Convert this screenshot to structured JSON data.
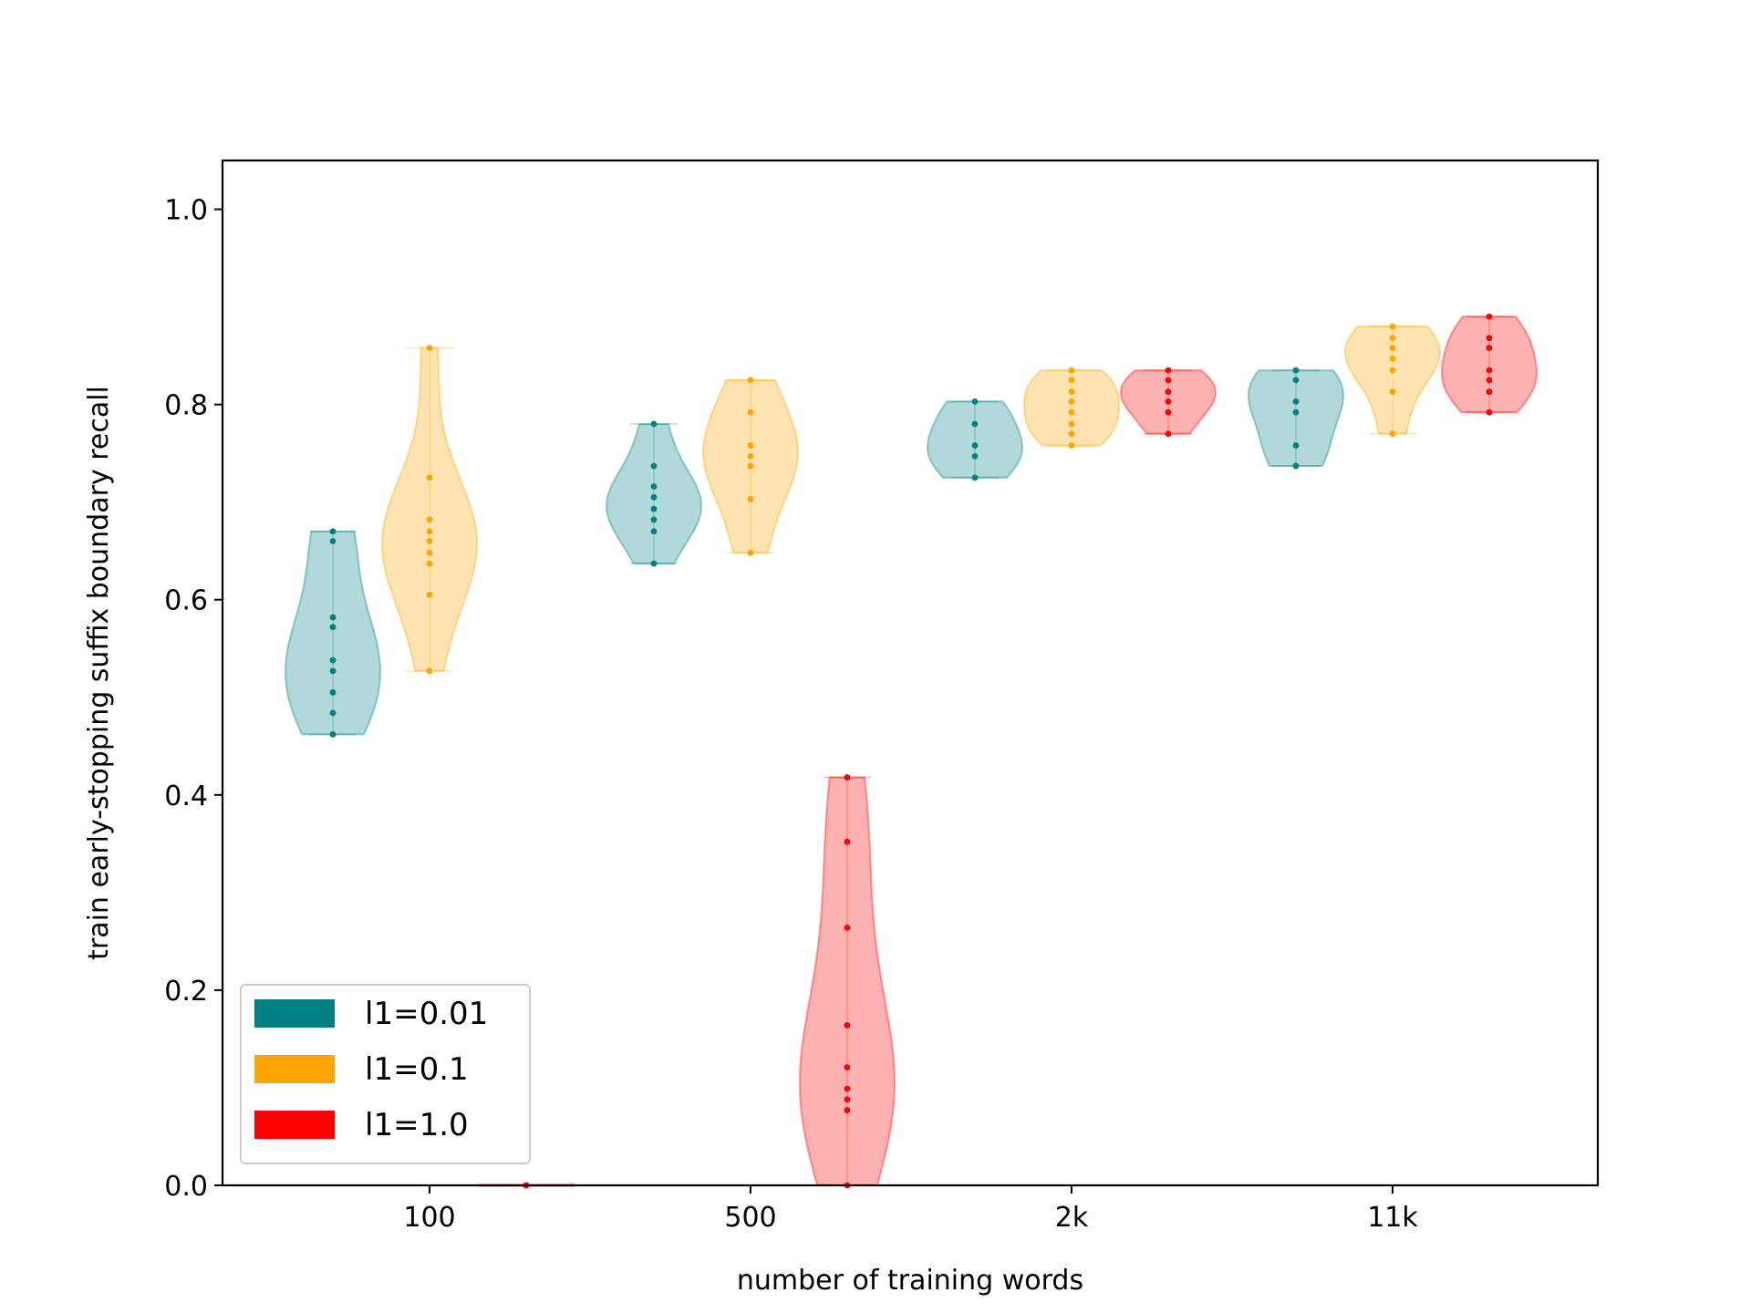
{
  "chart_data": {
    "type": "violin",
    "xlabel": "number of training words",
    "ylabel": "train early-stopping suffix boundary recall",
    "ylim": [
      0.0,
      1.05
    ],
    "yticks": [
      0.0,
      0.2,
      0.4,
      0.6,
      0.8,
      1.0
    ],
    "ytick_labels": [
      "0.0",
      "0.2",
      "0.4",
      "0.6",
      "0.8",
      "1.0"
    ],
    "categories": [
      "100",
      "500",
      "2k",
      "11k"
    ],
    "grid": false,
    "legend_position": "lower-left",
    "series": [
      {
        "name": "l1=0.01",
        "color": "#008080",
        "points": [
          [
            0.67,
            0.66,
            0.582,
            0.572,
            0.538,
            0.527,
            0.505,
            0.484,
            0.462
          ],
          [
            0.78,
            0.737,
            0.716,
            0.705,
            0.693,
            0.682,
            0.67,
            0.637
          ],
          [
            0.803,
            0.78,
            0.758,
            0.747,
            0.725
          ],
          [
            0.835,
            0.825,
            0.803,
            0.792,
            0.758,
            0.737
          ]
        ]
      },
      {
        "name": "l1=0.1",
        "color": "#FFA500",
        "points": [
          [
            0.858,
            0.725,
            0.682,
            0.67,
            0.66,
            0.648,
            0.637,
            0.605,
            0.527
          ],
          [
            0.825,
            0.792,
            0.758,
            0.747,
            0.737,
            0.703,
            0.648
          ],
          [
            0.835,
            0.825,
            0.813,
            0.803,
            0.792,
            0.78,
            0.77,
            0.758
          ],
          [
            0.88,
            0.868,
            0.858,
            0.847,
            0.835,
            0.813,
            0.77
          ]
        ]
      },
      {
        "name": "l1=1.0",
        "color": "#FF0000",
        "points": [
          [
            0.0,
            0.0,
            0.0,
            0.0,
            0.0
          ],
          [
            0.418,
            0.352,
            0.264,
            0.164,
            0.121,
            0.099,
            0.088,
            0.077,
            0.0
          ],
          [
            0.835,
            0.825,
            0.813,
            0.803,
            0.792,
            0.77
          ],
          [
            0.89,
            0.868,
            0.858,
            0.835,
            0.825,
            0.813,
            0.792
          ]
        ]
      }
    ]
  }
}
